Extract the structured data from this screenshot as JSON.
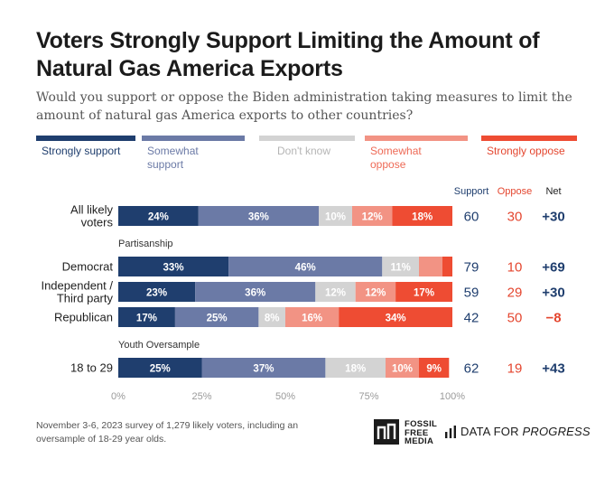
{
  "title": "Voters Strongly Support Limiting the Amount of Natural Gas America Exports",
  "subtitle": "Would you support or oppose the Biden administration taking measures to limit the amount of natural gas America exports to other countries?",
  "footnote": "November 3-6, 2023 survey of 1,279 likely voters, including an oversample of 18-29 year olds.",
  "logos": {
    "ffm": [
      "FOSSIL",
      "FREE",
      "MEDIA"
    ],
    "dfp_prefix": "DATA FOR",
    "dfp_bold": "PROGRESS"
  },
  "colors": {
    "strongly_support": "#1f3e6e",
    "somewhat_support": "#6b7aa6",
    "dont_know": "#d3d3d3",
    "somewhat_oppose": "#f29384",
    "strongly_oppose": "#ee4c33",
    "support_text": "#1f3e6e",
    "oppose_text": "#e4462f"
  },
  "columns": {
    "support": "Support",
    "oppose": "Oppose",
    "net": "Net"
  },
  "chart_data": {
    "type": "bar",
    "orientation": "horizontal",
    "stacked": true,
    "xlim": [
      0,
      100
    ],
    "xticks": [
      "0%",
      "25%",
      "50%",
      "75%",
      "100%"
    ],
    "series": [
      {
        "key": "strongly_support",
        "name": "Strongly support"
      },
      {
        "key": "somewhat_support",
        "name": "Somewhat support"
      },
      {
        "key": "dont_know",
        "name": "Don't know"
      },
      {
        "key": "somewhat_oppose",
        "name": "Somewhat oppose"
      },
      {
        "key": "strongly_oppose",
        "name": "Strongly oppose"
      }
    ],
    "groups": [
      {
        "label": "",
        "rows": [
          {
            "label": "All likely voters",
            "values": [
              24,
              36,
              10,
              12,
              18
            ],
            "labels": [
              "24%",
              "36%",
              "10%",
              "12%",
              "18%"
            ],
            "support": "60",
            "oppose": "30",
            "net": "+30"
          }
        ]
      },
      {
        "label": "Partisanship",
        "rows": [
          {
            "label": "Democrat",
            "values": [
              33,
              46,
              11,
              7,
              3
            ],
            "labels": [
              "33%",
              "46%",
              "11%",
              "",
              ""
            ],
            "support": "79",
            "oppose": "10",
            "net": "+69"
          },
          {
            "label": "Independent / Third party",
            "values": [
              23,
              36,
              12,
              12,
              17
            ],
            "labels": [
              "23%",
              "36%",
              "12%",
              "12%",
              "17%"
            ],
            "support": "59",
            "oppose": "29",
            "net": "+30"
          },
          {
            "label": "Republican",
            "values": [
              17,
              25,
              8,
              16,
              34
            ],
            "labels": [
              "17%",
              "25%",
              "8%",
              "16%",
              "34%"
            ],
            "support": "42",
            "oppose": "50",
            "net": "−8"
          }
        ]
      },
      {
        "label": "Youth Oversample",
        "rows": [
          {
            "label": "18 to 29",
            "values": [
              25,
              37,
              18,
              10,
              9
            ],
            "labels": [
              "25%",
              "37%",
              "18%",
              "10%",
              "9%"
            ],
            "support": "62",
            "oppose": "19",
            "net": "+43"
          }
        ]
      }
    ]
  }
}
